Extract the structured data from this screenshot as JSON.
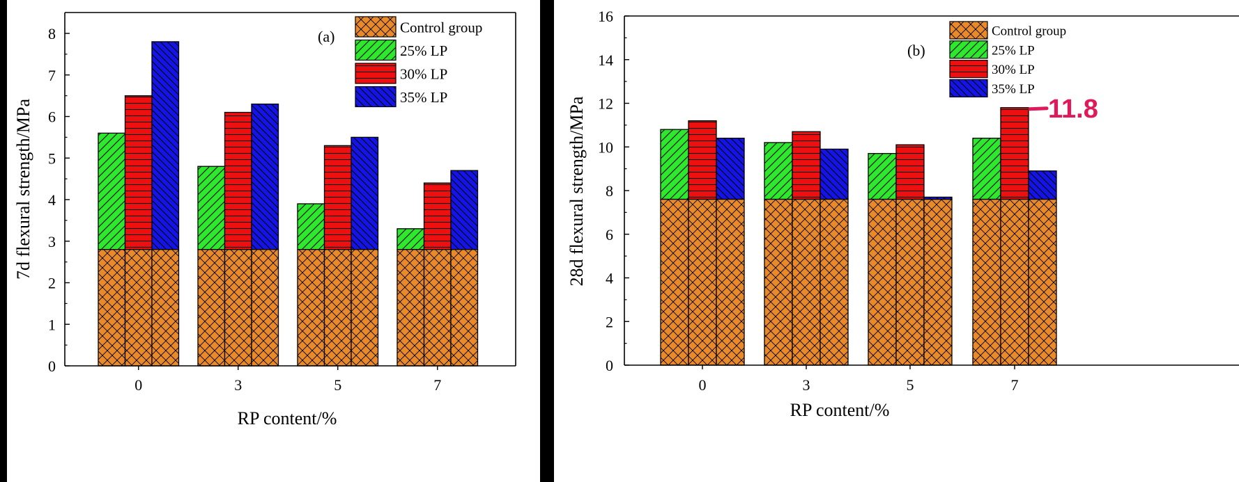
{
  "chart_data": [
    {
      "type": "bar",
      "panel_label": "(a)",
      "categories": [
        "0",
        "3",
        "5",
        "7"
      ],
      "xlabel": "RP content/%",
      "ylabel": "7d flexural strength/MPa",
      "ylim": [
        0,
        8.5
      ],
      "yticks": [
        0,
        1,
        2,
        3,
        4,
        5,
        6,
        7,
        8
      ],
      "base": {
        "name": "Control group",
        "value": 2.8
      },
      "series": [
        {
          "name": "25% LP",
          "values": [
            5.6,
            4.8,
            3.9,
            3.3
          ]
        },
        {
          "name": "30% LP",
          "values": [
            6.5,
            6.1,
            5.3,
            4.4
          ]
        },
        {
          "name": "35% LP",
          "values": [
            7.8,
            6.3,
            5.5,
            4.7
          ]
        }
      ],
      "legend_position": "top-right",
      "grid": false
    },
    {
      "type": "bar",
      "panel_label": "(b)",
      "categories": [
        "0",
        "3",
        "5",
        "7"
      ],
      "xlabel": "RP content/%",
      "ylabel": "28d flexural strength/MPa",
      "ylim": [
        0,
        16
      ],
      "yticks": [
        0,
        2,
        4,
        6,
        8,
        10,
        12,
        14,
        16
      ],
      "base": {
        "name": "Control group",
        "value": 7.6
      },
      "series": [
        {
          "name": "25% LP",
          "values": [
            10.8,
            10.2,
            9.7,
            10.4
          ]
        },
        {
          "name": "30% LP",
          "values": [
            11.2,
            10.7,
            10.1,
            11.8
          ]
        },
        {
          "name": "35% LP",
          "values": [
            10.4,
            9.9,
            7.7,
            8.9
          ]
        }
      ],
      "legend_position": "top-right",
      "grid": false,
      "annotation": {
        "text": "11.8",
        "color": "#e0195a",
        "series": "30% LP",
        "category": "7"
      }
    }
  ],
  "colors": {
    "control": "#e8892a",
    "lp25": "#2ee82e",
    "lp30": "#ee1010",
    "lp35": "#1414e6",
    "background": "#000000",
    "panel": "#ffffff"
  }
}
